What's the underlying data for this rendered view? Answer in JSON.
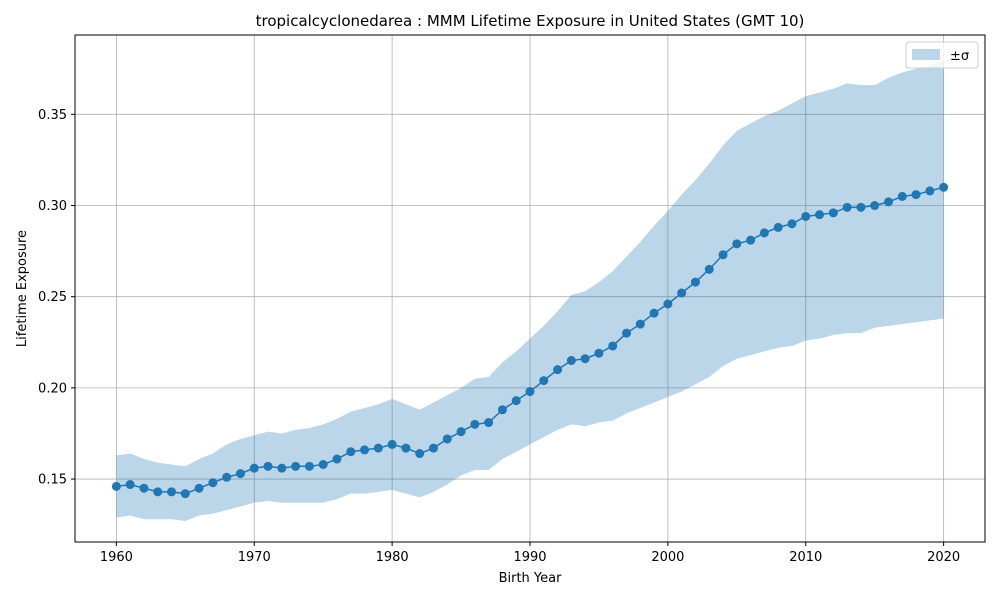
{
  "chart_data": {
    "type": "line",
    "title": "tropicalcyclonedarea : MMM Lifetime Exposure in United States (GMT 10)",
    "xlabel": "Birth Year",
    "ylabel": "Lifetime Exposure",
    "xlim": [
      1957,
      2023
    ],
    "ylim": [
      0.1155,
      0.3935
    ],
    "xticks": [
      1960,
      1970,
      1980,
      1990,
      2000,
      2010,
      2020
    ],
    "yticks": [
      0.15,
      0.2,
      0.25,
      0.3,
      0.35
    ],
    "ytick_labels": [
      "0.15",
      "0.20",
      "0.25",
      "0.30",
      "0.35"
    ],
    "grid": true,
    "legend": {
      "placement": "top-right",
      "entries": [
        {
          "label": "±σ"
        }
      ]
    },
    "colors": {
      "line": "#1f77b4",
      "band": "#1f77b4",
      "band_opacity": 0.3
    },
    "x": [
      1960,
      1961,
      1962,
      1963,
      1964,
      1965,
      1966,
      1967,
      1968,
      1969,
      1970,
      1971,
      1972,
      1973,
      1974,
      1975,
      1976,
      1977,
      1978,
      1979,
      1980,
      1981,
      1982,
      1983,
      1984,
      1985,
      1986,
      1987,
      1988,
      1989,
      1990,
      1991,
      1992,
      1993,
      1994,
      1995,
      1996,
      1997,
      1998,
      1999,
      2000,
      2001,
      2002,
      2003,
      2004,
      2005,
      2006,
      2007,
      2008,
      2009,
      2010,
      2011,
      2012,
      2013,
      2014,
      2015,
      2016,
      2017,
      2018,
      2019,
      2020
    ],
    "series": [
      {
        "values": [
          0.146,
          0.147,
          0.145,
          0.143,
          0.143,
          0.142,
          0.145,
          0.148,
          0.151,
          0.153,
          0.156,
          0.157,
          0.156,
          0.157,
          0.157,
          0.158,
          0.161,
          0.165,
          0.166,
          0.167,
          0.169,
          0.167,
          0.164,
          0.167,
          0.172,
          0.176,
          0.18,
          0.181,
          0.188,
          0.193,
          0.198,
          0.204,
          0.21,
          0.215,
          0.216,
          0.219,
          0.223,
          0.23,
          0.235,
          0.241,
          0.246,
          0.252,
          0.258,
          0.265,
          0.273,
          0.279,
          0.281,
          0.285,
          0.288,
          0.29,
          0.294,
          0.295,
          0.296,
          0.299,
          0.299,
          0.3,
          0.302,
          0.305,
          0.306,
          0.308,
          0.31
        ],
        "upper": [
          0.163,
          0.164,
          0.161,
          0.159,
          0.158,
          0.157,
          0.161,
          0.164,
          0.169,
          0.172,
          0.174,
          0.176,
          0.175,
          0.177,
          0.178,
          0.18,
          0.183,
          0.187,
          0.189,
          0.191,
          0.194,
          0.191,
          0.188,
          0.192,
          0.196,
          0.2,
          0.205,
          0.206,
          0.214,
          0.22,
          0.227,
          0.234,
          0.242,
          0.251,
          0.253,
          0.258,
          0.264,
          0.272,
          0.28,
          0.289,
          0.297,
          0.306,
          0.314,
          0.323,
          0.333,
          0.341,
          0.345,
          0.349,
          0.352,
          0.356,
          0.36,
          0.362,
          0.364,
          0.367,
          0.366,
          0.366,
          0.37,
          0.373,
          0.375,
          0.377,
          0.38
        ],
        "lower": [
          0.129,
          0.13,
          0.128,
          0.128,
          0.128,
          0.127,
          0.13,
          0.131,
          0.133,
          0.135,
          0.137,
          0.138,
          0.137,
          0.137,
          0.137,
          0.137,
          0.139,
          0.142,
          0.142,
          0.143,
          0.144,
          0.142,
          0.14,
          0.143,
          0.147,
          0.152,
          0.155,
          0.155,
          0.161,
          0.165,
          0.169,
          0.173,
          0.177,
          0.18,
          0.179,
          0.181,
          0.182,
          0.186,
          0.189,
          0.192,
          0.195,
          0.198,
          0.202,
          0.206,
          0.212,
          0.216,
          0.218,
          0.22,
          0.222,
          0.223,
          0.226,
          0.227,
          0.229,
          0.23,
          0.23,
          0.233,
          0.234,
          0.235,
          0.236,
          0.237,
          0.238
        ]
      }
    ]
  }
}
